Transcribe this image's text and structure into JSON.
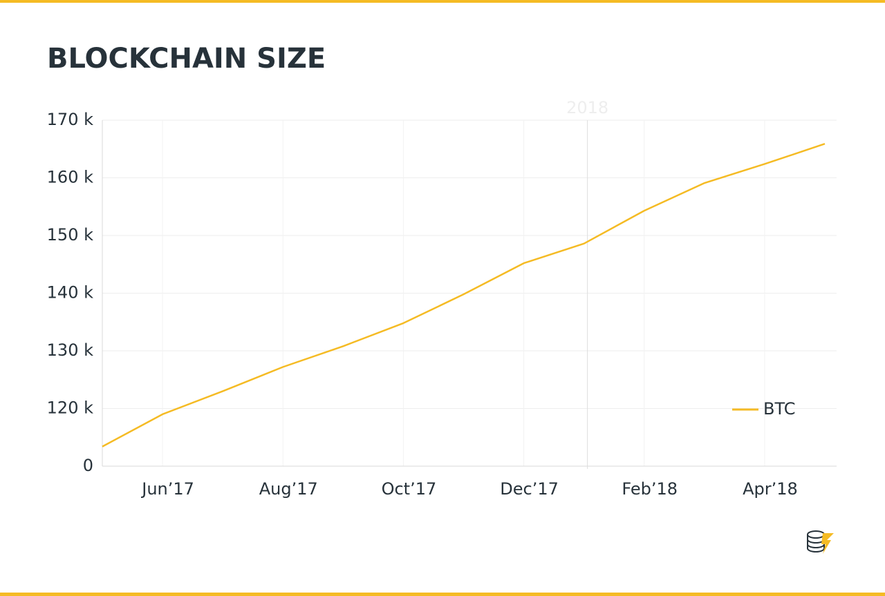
{
  "chart_data": {
    "type": "line",
    "title": "BLOCKCHAIN SIZE",
    "x": [
      "2017-05",
      "2017-06",
      "2017-07",
      "2017-08",
      "2017-09",
      "2017-10",
      "2017-11",
      "2017-12",
      "2018-01",
      "2018-02",
      "2018-03",
      "2018-04",
      "2018-05"
    ],
    "series": [
      {
        "name": "BTC",
        "color": "#f5bb24",
        "values": [
          113400,
          119000,
          123000,
          127200,
          130800,
          134800,
          139800,
          145200,
          148600,
          154300,
          159100,
          162400,
          165900
        ]
      }
    ],
    "xlim": [
      "2017-05",
      "2018-05"
    ],
    "xticks": [
      {
        "value": "2017-06",
        "label": "Jun’17"
      },
      {
        "value": "2017-08",
        "label": "Aug’17"
      },
      {
        "value": "2017-10",
        "label": "Oct’17"
      },
      {
        "value": "2017-12",
        "label": "Dec’17"
      },
      {
        "value": "2018-02",
        "label": "Feb’18"
      },
      {
        "value": "2018-04",
        "label": "Apr’18"
      }
    ],
    "ylim": [
      0,
      170000
    ],
    "ybreak": [
      0,
      110000
    ],
    "yticks": [
      0,
      {
        "value": 120000,
        "label": "120 k"
      },
      {
        "value": 130000,
        "label": "130 k"
      },
      {
        "value": 140000,
        "label": "140 k"
      },
      {
        "value": 150000,
        "label": "150 k"
      },
      {
        "value": 160000,
        "label": "160 k"
      },
      {
        "value": 170000,
        "label": "170 k"
      }
    ],
    "year_marker": {
      "value": "2018-01",
      "label": "2018"
    },
    "grid": true,
    "legend": "lower right"
  }
}
